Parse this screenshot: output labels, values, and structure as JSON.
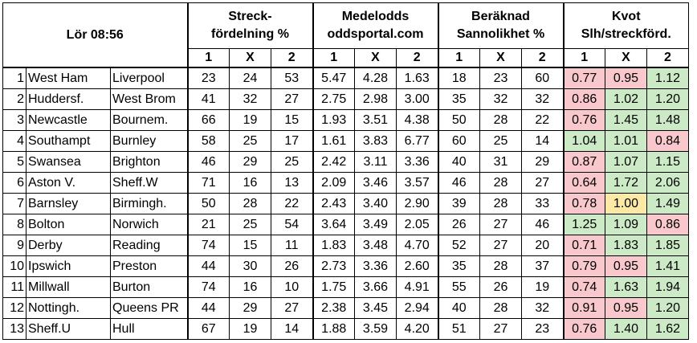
{
  "header": {
    "title": "Lör 08:56",
    "groups": [
      {
        "line1": "Streck-",
        "line2": "fördelning %"
      },
      {
        "line1": "Medelodds",
        "line2": "oddsportal.com"
      },
      {
        "line1": "Beräknad",
        "line2": "Sannolikhet %"
      },
      {
        "line1": "Kvot",
        "line2": "Slh/streckförd."
      }
    ],
    "subcols": [
      "1",
      "X",
      "2"
    ]
  },
  "colors": {
    "below_one": "#f8c8cc",
    "above_one": "#cdeac6",
    "equal_one": "#fde9a6"
  },
  "rows": [
    {
      "n": "1",
      "home": "West Ham",
      "away": "Liverpool",
      "streck": [
        "23",
        "24",
        "53"
      ],
      "odds": [
        "5.47",
        "4.28",
        "1.63"
      ],
      "prob": [
        "18",
        "23",
        "60"
      ],
      "kvot": [
        "0.77",
        "0.95",
        "1.12"
      ]
    },
    {
      "n": "2",
      "home": "Huddersf.",
      "away": "West Brom",
      "streck": [
        "41",
        "32",
        "27"
      ],
      "odds": [
        "2.75",
        "2.98",
        "3.00"
      ],
      "prob": [
        "35",
        "32",
        "32"
      ],
      "kvot": [
        "0.86",
        "1.02",
        "1.20"
      ]
    },
    {
      "n": "3",
      "home": "Newcastle",
      "away": "Bournem.",
      "streck": [
        "66",
        "19",
        "15"
      ],
      "odds": [
        "1.93",
        "3.51",
        "4.38"
      ],
      "prob": [
        "50",
        "28",
        "22"
      ],
      "kvot": [
        "0.76",
        "1.45",
        "1.48"
      ]
    },
    {
      "n": "4",
      "home": "Southampt",
      "away": "Burnley",
      "streck": [
        "58",
        "25",
        "17"
      ],
      "odds": [
        "1.61",
        "3.83",
        "6.77"
      ],
      "prob": [
        "60",
        "25",
        "14"
      ],
      "kvot": [
        "1.04",
        "1.01",
        "0.84"
      ]
    },
    {
      "n": "5",
      "home": "Swansea",
      "away": "Brighton",
      "streck": [
        "46",
        "29",
        "25"
      ],
      "odds": [
        "2.42",
        "3.11",
        "3.36"
      ],
      "prob": [
        "40",
        "31",
        "29"
      ],
      "kvot": [
        "0.87",
        "1.07",
        "1.15"
      ]
    },
    {
      "n": "6",
      "home": "Aston V.",
      "away": "Sheff.W",
      "streck": [
        "71",
        "16",
        "13"
      ],
      "odds": [
        "2.09",
        "3.46",
        "3.57"
      ],
      "prob": [
        "46",
        "28",
        "27"
      ],
      "kvot": [
        "0.64",
        "1.72",
        "2.06"
      ]
    },
    {
      "n": "7",
      "home": "Barnsley",
      "away": "Birmingh.",
      "streck": [
        "50",
        "28",
        "22"
      ],
      "odds": [
        "2.43",
        "3.40",
        "2.90"
      ],
      "prob": [
        "39",
        "28",
        "33"
      ],
      "kvot": [
        "0.78",
        "1.00",
        "1.49"
      ]
    },
    {
      "n": "8",
      "home": "Bolton",
      "away": "Norwich",
      "streck": [
        "21",
        "25",
        "54"
      ],
      "odds": [
        "3.64",
        "3.49",
        "2.05"
      ],
      "prob": [
        "26",
        "27",
        "46"
      ],
      "kvot": [
        "1.25",
        "1.09",
        "0.86"
      ]
    },
    {
      "n": "9",
      "home": "Derby",
      "away": "Reading",
      "streck": [
        "74",
        "15",
        "11"
      ],
      "odds": [
        "1.83",
        "3.48",
        "4.70"
      ],
      "prob": [
        "52",
        "27",
        "20"
      ],
      "kvot": [
        "0.71",
        "1.83",
        "1.85"
      ]
    },
    {
      "n": "10",
      "home": "Ipswich",
      "away": "Preston",
      "streck": [
        "44",
        "30",
        "26"
      ],
      "odds": [
        "2.73",
        "3.36",
        "2.60"
      ],
      "prob": [
        "35",
        "28",
        "37"
      ],
      "kvot": [
        "0.79",
        "0.95",
        "1.41"
      ]
    },
    {
      "n": "11",
      "home": "Millwall",
      "away": "Burton",
      "streck": [
        "74",
        "16",
        "10"
      ],
      "odds": [
        "1.75",
        "3.66",
        "4.91"
      ],
      "prob": [
        "55",
        "26",
        "19"
      ],
      "kvot": [
        "0.74",
        "1.63",
        "1.94"
      ]
    },
    {
      "n": "12",
      "home": "Nottingh.",
      "away": "Queens PR",
      "streck": [
        "44",
        "29",
        "27"
      ],
      "odds": [
        "2.38",
        "3.45",
        "2.94"
      ],
      "prob": [
        "40",
        "28",
        "32"
      ],
      "kvot": [
        "0.91",
        "0.95",
        "1.20"
      ]
    },
    {
      "n": "13",
      "home": "Sheff.U",
      "away": "Hull",
      "streck": [
        "67",
        "19",
        "14"
      ],
      "odds": [
        "1.88",
        "3.59",
        "4.20"
      ],
      "prob": [
        "51",
        "27",
        "23"
      ],
      "kvot": [
        "0.76",
        "1.40",
        "1.62"
      ]
    }
  ]
}
